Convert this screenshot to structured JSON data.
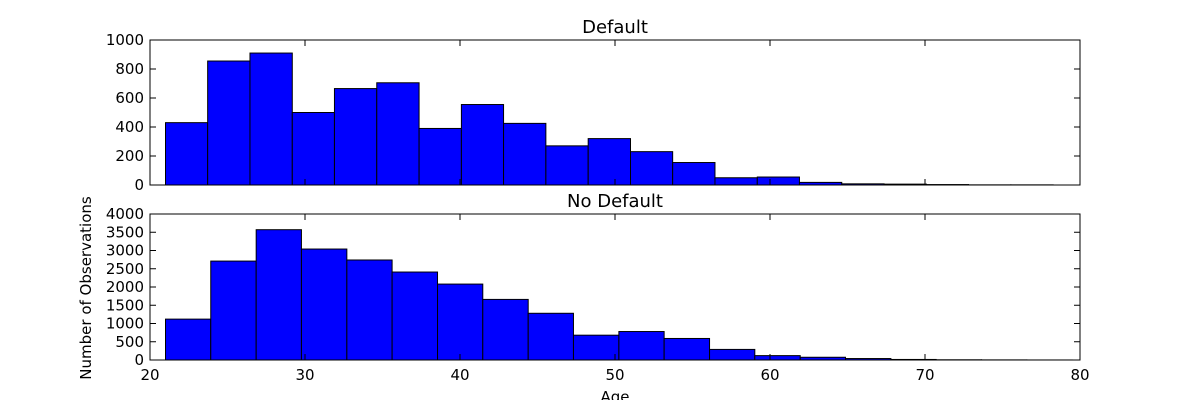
{
  "chart_data": [
    {
      "type": "bar",
      "title": "Default",
      "xlim": [
        20,
        80
      ],
      "ylim": [
        0,
        1000
      ],
      "yticks": [
        0,
        200,
        400,
        600,
        800,
        1000
      ],
      "bin_edges": [
        21,
        23.72,
        26.45,
        29.18,
        31.9,
        34.63,
        37.36,
        40.09,
        42.81,
        45.54,
        48.27,
        51.0,
        53.72,
        56.45,
        59.18,
        61.9,
        64.63,
        67.36,
        70.09,
        72.81,
        75.54,
        78.27
      ],
      "values": [
        430,
        855,
        910,
        500,
        665,
        705,
        390,
        555,
        425,
        270,
        320,
        230,
        155,
        50,
        55,
        18,
        8,
        6,
        3,
        1,
        1
      ],
      "color": "#0000ff"
    },
    {
      "type": "bar",
      "title": "No Default",
      "xlabel": "Age",
      "ylabel": "Number of Observations",
      "xlim": [
        20,
        80
      ],
      "xticks": [
        20,
        30,
        40,
        50,
        60,
        70,
        80
      ],
      "ylim": [
        0,
        4000
      ],
      "yticks": [
        0,
        500,
        1000,
        1500,
        2000,
        2500,
        3000,
        3500,
        4000
      ],
      "bin_edges": [
        21,
        23.92,
        26.85,
        29.77,
        32.7,
        35.62,
        38.55,
        41.47,
        44.4,
        47.32,
        50.25,
        53.17,
        56.1,
        59.02,
        61.95,
        64.87,
        67.8,
        70.72,
        73.65,
        76.57,
        79.5
      ],
      "values": [
        1120,
        2710,
        3570,
        3040,
        2740,
        2410,
        2080,
        1660,
        1280,
        680,
        780,
        590,
        290,
        120,
        75,
        40,
        15,
        6,
        3,
        1
      ],
      "color": "#0000ff"
    }
  ]
}
